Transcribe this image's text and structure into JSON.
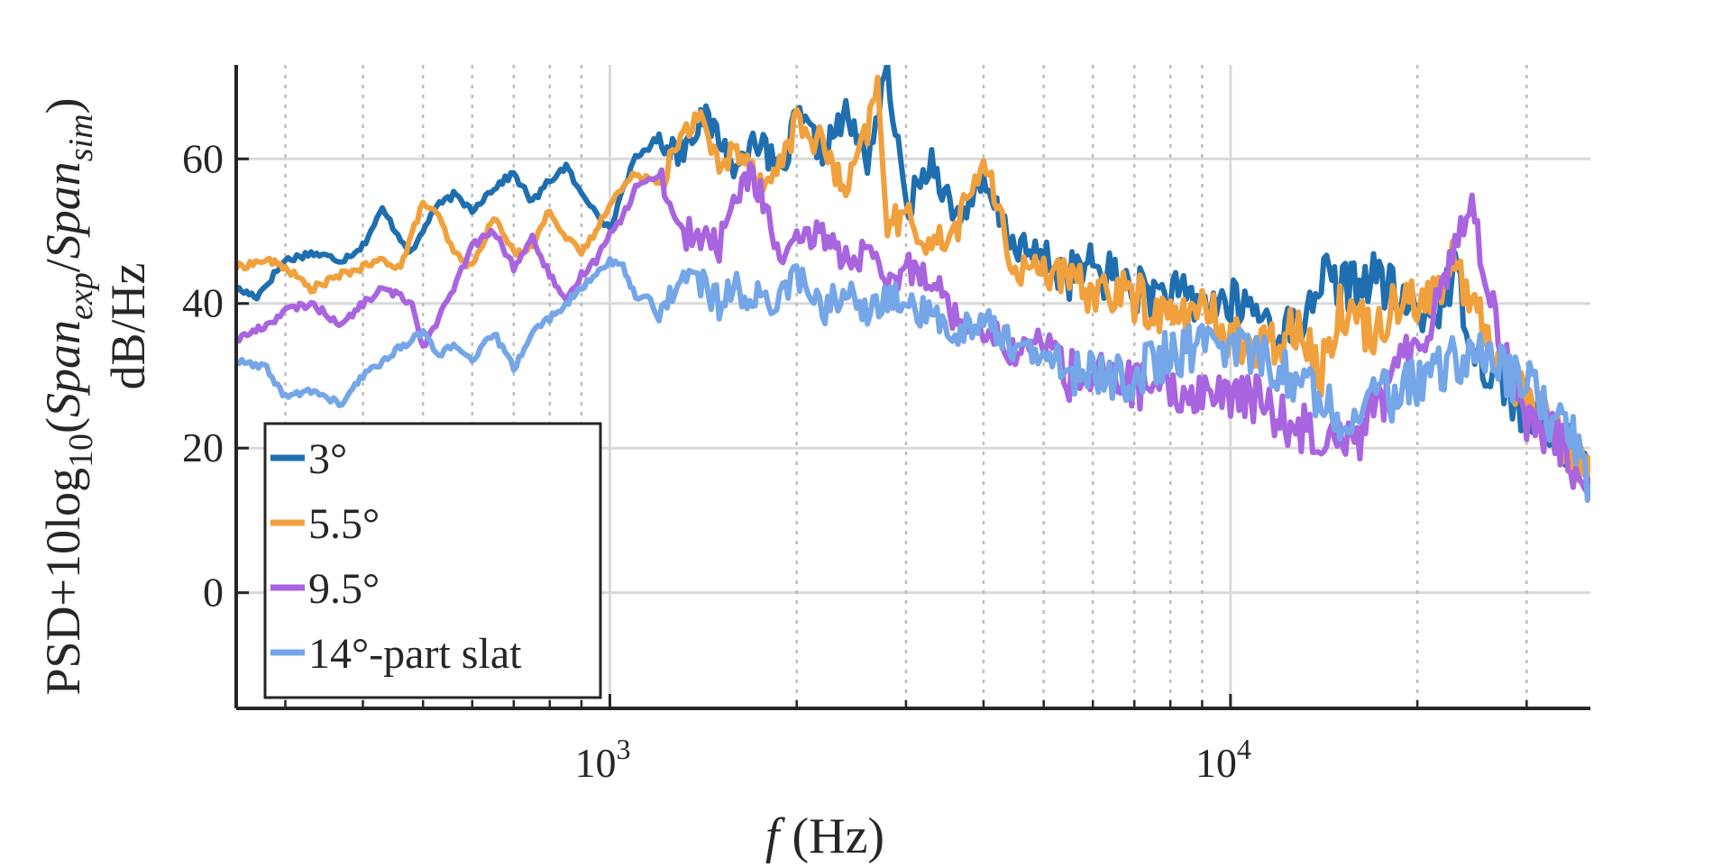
{
  "chart_data": {
    "type": "line",
    "title": "",
    "xscale": "log",
    "xlim": [
      250,
      38000
    ],
    "ylim": [
      -16,
      73
    ],
    "grid": true,
    "xlabel": {
      "italic": "f",
      "rest": " (Hz)"
    },
    "ylabel": {
      "line1": "dB/Hz",
      "line2_parts": [
        "PSD+10log",
        "10",
        "(",
        "Span",
        "exp",
        "/",
        "Span",
        "sim",
        ")"
      ]
    },
    "yticks": [
      0,
      20,
      40,
      60
    ],
    "ytick_labels": [
      "0",
      "20",
      "40",
      "60"
    ],
    "xticks_major": [
      1000,
      10000
    ],
    "xtick_labels": [
      {
        "base": "10",
        "exp": "3"
      },
      {
        "base": "10",
        "exp": "4"
      }
    ],
    "xticks_minor": [
      300,
      400,
      500,
      600,
      700,
      800,
      900,
      2000,
      3000,
      4000,
      5000,
      6000,
      7000,
      8000,
      9000,
      20000,
      30000
    ],
    "legend": {
      "position": "bottom-left"
    },
    "series": [
      {
        "name": "3°",
        "color": "#1f6fb0",
        "points": [
          [
            250,
            42
          ],
          [
            270,
            41
          ],
          [
            300,
            46
          ],
          [
            330,
            47
          ],
          [
            370,
            46
          ],
          [
            400,
            48
          ],
          [
            430,
            53
          ],
          [
            460,
            49
          ],
          [
            480,
            47
          ],
          [
            520,
            53
          ],
          [
            560,
            55
          ],
          [
            600,
            53
          ],
          [
            650,
            56
          ],
          [
            700,
            58
          ],
          [
            750,
            54
          ],
          [
            800,
            57
          ],
          [
            850,
            59
          ],
          [
            900,
            55
          ],
          [
            950,
            53
          ],
          [
            1000,
            50
          ],
          [
            1050,
            56
          ],
          [
            1100,
            60
          ],
          [
            1200,
            63
          ],
          [
            1300,
            61
          ],
          [
            1400,
            66
          ],
          [
            1500,
            63
          ],
          [
            1600,
            58
          ],
          [
            1700,
            64
          ],
          [
            1800,
            60
          ],
          [
            1900,
            58
          ],
          [
            2000,
            66
          ],
          [
            2200,
            61
          ],
          [
            2400,
            66
          ],
          [
            2600,
            60
          ],
          [
            2800,
            72
          ],
          [
            3000,
            53
          ],
          [
            3300,
            60
          ],
          [
            3600,
            52
          ],
          [
            4000,
            56
          ],
          [
            4500,
            48
          ],
          [
            5000,
            46
          ],
          [
            5500,
            44
          ],
          [
            6000,
            45
          ],
          [
            7000,
            42
          ],
          [
            8000,
            41
          ],
          [
            9000,
            40
          ],
          [
            10000,
            40
          ],
          [
            11000,
            39
          ],
          [
            12000,
            36
          ],
          [
            13000,
            37
          ],
          [
            14000,
            44
          ],
          [
            15000,
            42
          ],
          [
            17000,
            44
          ],
          [
            19000,
            40
          ],
          [
            21000,
            38
          ],
          [
            23000,
            44
          ],
          [
            25000,
            33
          ],
          [
            27000,
            30
          ],
          [
            30000,
            24
          ],
          [
            33000,
            22
          ],
          [
            36000,
            19
          ],
          [
            38000,
            18
          ]
        ]
      },
      {
        "name": "5.5°",
        "color": "#f0a03c",
        "points": [
          [
            250,
            45
          ],
          [
            280,
            46
          ],
          [
            300,
            45
          ],
          [
            330,
            42
          ],
          [
            370,
            44
          ],
          [
            400,
            45
          ],
          [
            430,
            46
          ],
          [
            460,
            45
          ],
          [
            500,
            54
          ],
          [
            530,
            52
          ],
          [
            560,
            47
          ],
          [
            600,
            45
          ],
          [
            650,
            52
          ],
          [
            700,
            47
          ],
          [
            750,
            48
          ],
          [
            800,
            53
          ],
          [
            850,
            49
          ],
          [
            900,
            47
          ],
          [
            950,
            50
          ],
          [
            1000,
            54
          ],
          [
            1100,
            58
          ],
          [
            1200,
            57
          ],
          [
            1300,
            62
          ],
          [
            1400,
            67
          ],
          [
            1500,
            58
          ],
          [
            1600,
            62
          ],
          [
            1800,
            56
          ],
          [
            2000,
            65
          ],
          [
            2200,
            62
          ],
          [
            2400,
            55
          ],
          [
            2600,
            64
          ],
          [
            2700,
            70
          ],
          [
            2800,
            51
          ],
          [
            3000,
            52
          ],
          [
            3300,
            48
          ],
          [
            3600,
            50
          ],
          [
            4000,
            60
          ],
          [
            4500,
            44
          ],
          [
            5000,
            46
          ],
          [
            5500,
            42
          ],
          [
            6000,
            42
          ],
          [
            7000,
            41
          ],
          [
            8000,
            38
          ],
          [
            9000,
            39
          ],
          [
            10000,
            36
          ],
          [
            11000,
            33
          ],
          [
            12000,
            35
          ],
          [
            13000,
            38
          ],
          [
            14000,
            30
          ],
          [
            15000,
            40
          ],
          [
            17000,
            36
          ],
          [
            19000,
            42
          ],
          [
            21000,
            40
          ],
          [
            23000,
            46
          ],
          [
            25000,
            38
          ],
          [
            27000,
            33
          ],
          [
            30000,
            27
          ],
          [
            33000,
            23
          ],
          [
            36000,
            18
          ],
          [
            38000,
            16
          ]
        ]
      },
      {
        "name": "9.5°",
        "color": "#a964e0",
        "points": [
          [
            250,
            35
          ],
          [
            280,
            37
          ],
          [
            300,
            39
          ],
          [
            330,
            40
          ],
          [
            370,
            37
          ],
          [
            400,
            40
          ],
          [
            430,
            42
          ],
          [
            460,
            41
          ],
          [
            480,
            40
          ],
          [
            500,
            34
          ],
          [
            530,
            38
          ],
          [
            560,
            42
          ],
          [
            600,
            48
          ],
          [
            650,
            50
          ],
          [
            700,
            45
          ],
          [
            750,
            49
          ],
          [
            800,
            44
          ],
          [
            850,
            40
          ],
          [
            900,
            44
          ],
          [
            950,
            46
          ],
          [
            1000,
            50
          ],
          [
            1050,
            52
          ],
          [
            1100,
            56
          ],
          [
            1200,
            58
          ],
          [
            1300,
            50
          ],
          [
            1400,
            49
          ],
          [
            1500,
            48
          ],
          [
            1600,
            55
          ],
          [
            1700,
            58
          ],
          [
            1800,
            52
          ],
          [
            1900,
            45
          ],
          [
            2000,
            48
          ],
          [
            2200,
            50
          ],
          [
            2400,
            46
          ],
          [
            2600,
            47
          ],
          [
            2800,
            42
          ],
          [
            3000,
            45
          ],
          [
            3300,
            44
          ],
          [
            3600,
            38
          ],
          [
            4000,
            37
          ],
          [
            4500,
            33
          ],
          [
            5000,
            35
          ],
          [
            5500,
            30
          ],
          [
            6000,
            30
          ],
          [
            7000,
            29
          ],
          [
            8000,
            27
          ],
          [
            9000,
            28
          ],
          [
            10000,
            27
          ],
          [
            11000,
            27
          ],
          [
            12000,
            24
          ],
          [
            13000,
            23
          ],
          [
            14000,
            22
          ],
          [
            15000,
            23
          ],
          [
            16000,
            21
          ],
          [
            17000,
            26
          ],
          [
            18000,
            28
          ],
          [
            19000,
            32
          ],
          [
            21000,
            38
          ],
          [
            23000,
            48
          ],
          [
            24000,
            54
          ],
          [
            25000,
            50
          ],
          [
            27000,
            36
          ],
          [
            30000,
            24
          ],
          [
            33000,
            22
          ],
          [
            36000,
            17
          ],
          [
            38000,
            16
          ]
        ]
      },
      {
        "name": "14°-part slat",
        "color": "#74a6e8",
        "points": [
          [
            250,
            32
          ],
          [
            280,
            31
          ],
          [
            300,
            27
          ],
          [
            330,
            28
          ],
          [
            370,
            26
          ],
          [
            400,
            30
          ],
          [
            430,
            32
          ],
          [
            460,
            34
          ],
          [
            500,
            36
          ],
          [
            530,
            33
          ],
          [
            560,
            34
          ],
          [
            600,
            32
          ],
          [
            650,
            36
          ],
          [
            700,
            31
          ],
          [
            750,
            36
          ],
          [
            800,
            38
          ],
          [
            850,
            40
          ],
          [
            900,
            42
          ],
          [
            950,
            44
          ],
          [
            1000,
            46
          ],
          [
            1050,
            45
          ],
          [
            1100,
            41
          ],
          [
            1150,
            41
          ],
          [
            1200,
            38
          ],
          [
            1300,
            44
          ],
          [
            1400,
            43
          ],
          [
            1500,
            40
          ],
          [
            1600,
            42
          ],
          [
            1800,
            40
          ],
          [
            2000,
            44
          ],
          [
            2200,
            39
          ],
          [
            2400,
            42
          ],
          [
            2600,
            38
          ],
          [
            2800,
            41
          ],
          [
            3000,
            40
          ],
          [
            3300,
            38
          ],
          [
            3600,
            36
          ],
          [
            4000,
            38
          ],
          [
            4500,
            34
          ],
          [
            5000,
            32
          ],
          [
            5500,
            31
          ],
          [
            6000,
            30
          ],
          [
            7000,
            30
          ],
          [
            8000,
            33
          ],
          [
            9000,
            34
          ],
          [
            10000,
            35
          ],
          [
            11000,
            33
          ],
          [
            12000,
            31
          ],
          [
            13000,
            28
          ],
          [
            14000,
            28
          ],
          [
            15000,
            24
          ],
          [
            16000,
            26
          ],
          [
            17000,
            28
          ],
          [
            18000,
            27
          ],
          [
            19000,
            28
          ],
          [
            21000,
            30
          ],
          [
            23000,
            32
          ],
          [
            25000,
            34
          ],
          [
            27000,
            31
          ],
          [
            30000,
            29
          ],
          [
            33000,
            24
          ],
          [
            36000,
            21
          ],
          [
            38000,
            15
          ]
        ]
      }
    ]
  }
}
